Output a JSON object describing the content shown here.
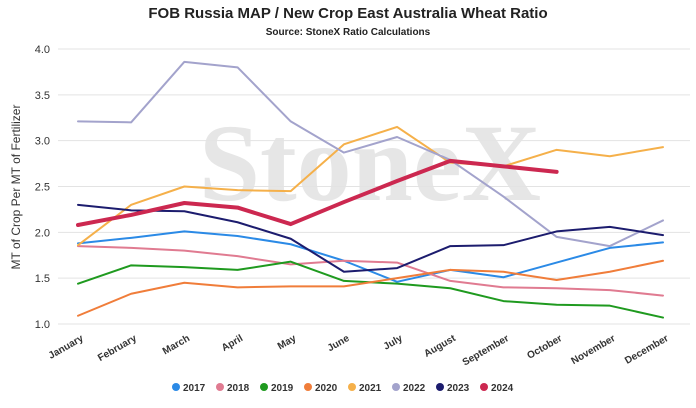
{
  "chart_data": {
    "type": "line",
    "title": "FOB Russia MAP / New Crop East Australia Wheat Ratio",
    "subtitle": "Source: StoneX Ratio Calculations",
    "y_label": "MT of Crop Per MT of Fertilizer",
    "watermark": "StoneX",
    "categories": [
      "January",
      "February",
      "March",
      "April",
      "May",
      "June",
      "July",
      "August",
      "September",
      "October",
      "November",
      "December"
    ],
    "ylim": [
      1.0,
      4.0
    ],
    "yticks": [
      {
        "value": 1.0,
        "label": "1.0"
      },
      {
        "value": 1.5,
        "label": "1.5"
      },
      {
        "value": 2.0,
        "label": "2.0"
      },
      {
        "value": 2.5,
        "label": "2.5"
      },
      {
        "value": 3.0,
        "label": "3.0"
      },
      {
        "value": 3.5,
        "label": "3.5"
      },
      {
        "value": 4.0,
        "label": "4.0"
      }
    ],
    "grid": true,
    "legend": "bottom",
    "series": [
      {
        "name": "2017",
        "color": "#2b8ae6",
        "values": [
          1.88,
          1.94,
          2.01,
          1.96,
          1.87,
          1.69,
          1.46,
          1.59,
          1.51,
          1.67,
          1.83,
          1.89
        ]
      },
      {
        "name": "2018",
        "color": "#e07b91",
        "values": [
          1.85,
          1.83,
          1.8,
          1.74,
          1.65,
          1.69,
          1.67,
          1.47,
          1.4,
          1.39,
          1.37,
          1.31
        ]
      },
      {
        "name": "2019",
        "color": "#1f9a1f",
        "values": [
          1.44,
          1.64,
          1.62,
          1.59,
          1.68,
          1.47,
          1.44,
          1.39,
          1.25,
          1.21,
          1.2,
          1.07
        ]
      },
      {
        "name": "2020",
        "color": "#f07d3a",
        "values": [
          1.09,
          1.33,
          1.45,
          1.4,
          1.41,
          1.41,
          1.5,
          1.59,
          1.57,
          1.48,
          1.57,
          1.69
        ]
      },
      {
        "name": "2021",
        "color": "#f5b04a",
        "values": [
          1.86,
          2.3,
          2.5,
          2.46,
          2.45,
          2.96,
          3.15,
          2.76,
          2.72,
          2.9,
          2.83,
          2.93
        ]
      },
      {
        "name": "2022",
        "color": "#a3a3cc",
        "values": [
          3.21,
          3.2,
          3.86,
          3.8,
          3.21,
          2.87,
          3.04,
          2.79,
          2.39,
          1.95,
          1.85,
          2.13
        ]
      },
      {
        "name": "2023",
        "color": "#1c1c6e",
        "values": [
          2.3,
          2.24,
          2.23,
          2.11,
          1.93,
          1.57,
          1.61,
          1.85,
          1.86,
          2.01,
          2.06,
          1.97
        ]
      },
      {
        "name": "2024",
        "color": "#cc2850",
        "width": 4,
        "values": [
          2.08,
          2.19,
          2.32,
          2.27,
          2.09,
          2.33,
          2.56,
          2.78,
          2.72,
          2.66,
          null,
          null
        ]
      }
    ]
  }
}
